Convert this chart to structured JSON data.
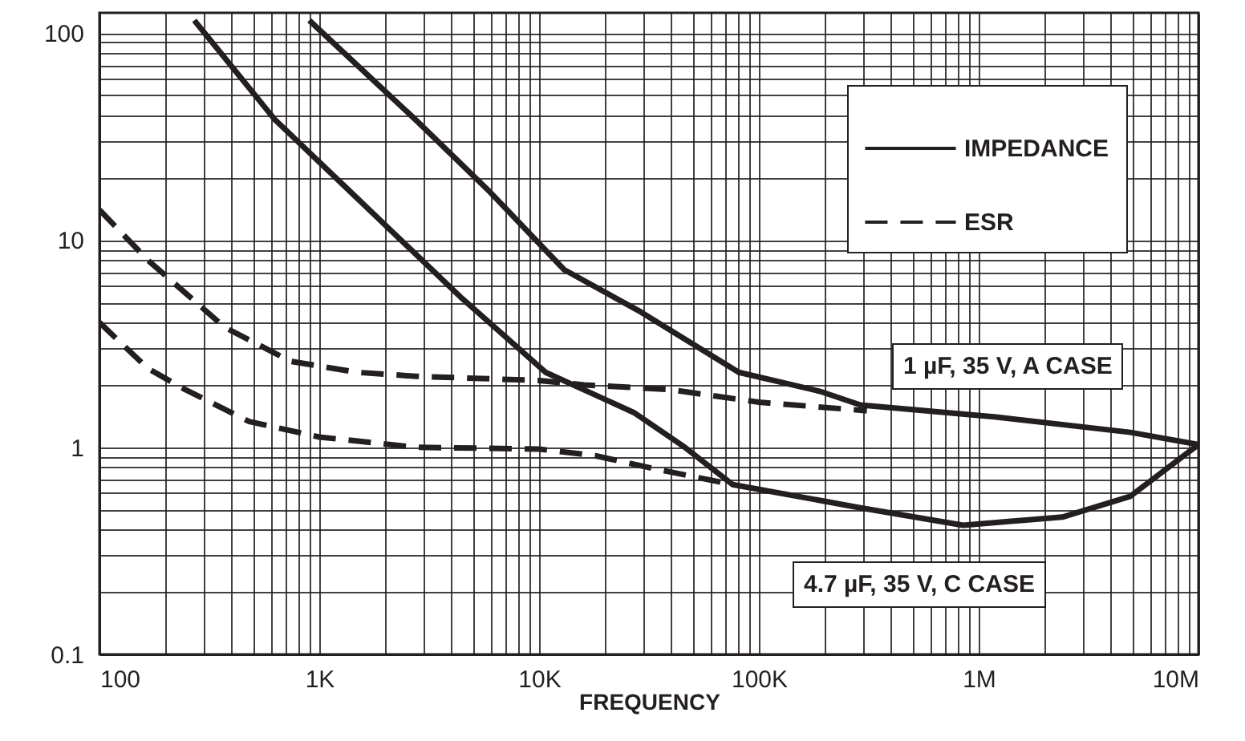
{
  "chart_data": {
    "type": "line",
    "xlabel": "FREQUENCY",
    "log": "xy",
    "grid": true,
    "legend": "top right",
    "marker": "none",
    "xlim": [
      100,
      10000000
    ],
    "ylim": [
      0.1,
      125
    ],
    "xticks": [
      {
        "value": 100,
        "label": "100"
      },
      {
        "value": 200,
        "label": null
      },
      {
        "value": 300,
        "label": null
      },
      {
        "value": 400,
        "label": null
      },
      {
        "value": 500,
        "label": null
      },
      {
        "value": 600,
        "label": null
      },
      {
        "value": 700,
        "label": null
      },
      {
        "value": 800,
        "label": null
      },
      {
        "value": 900,
        "label": null
      },
      {
        "value": 1000,
        "label": "1K"
      },
      {
        "value": 2000,
        "label": null
      },
      {
        "value": 3000,
        "label": null
      },
      {
        "value": 4000,
        "label": null
      },
      {
        "value": 5000,
        "label": null
      },
      {
        "value": 6000,
        "label": null
      },
      {
        "value": 7000,
        "label": null
      },
      {
        "value": 8000,
        "label": null
      },
      {
        "value": 9000,
        "label": null
      },
      {
        "value": 10000,
        "label": "10K"
      },
      {
        "value": 20000,
        "label": null
      },
      {
        "value": 30000,
        "label": null
      },
      {
        "value": 40000,
        "label": null
      },
      {
        "value": 50000,
        "label": null
      },
      {
        "value": 60000,
        "label": null
      },
      {
        "value": 70000,
        "label": null
      },
      {
        "value": 80000,
        "label": null
      },
      {
        "value": 90000,
        "label": null
      },
      {
        "value": 100000,
        "label": "100K"
      },
      {
        "value": 200000,
        "label": null
      },
      {
        "value": 300000,
        "label": null
      },
      {
        "value": 400000,
        "label": null
      },
      {
        "value": 500000,
        "label": null
      },
      {
        "value": 600000,
        "label": null
      },
      {
        "value": 700000,
        "label": null
      },
      {
        "value": 800000,
        "label": null
      },
      {
        "value": 900000,
        "label": null
      },
      {
        "value": 1000000,
        "label": "1M"
      },
      {
        "value": 2000000,
        "label": null
      },
      {
        "value": 3000000,
        "label": null
      },
      {
        "value": 4000000,
        "label": null
      },
      {
        "value": 5000000,
        "label": null
      },
      {
        "value": 6000000,
        "label": null
      },
      {
        "value": 7000000,
        "label": null
      },
      {
        "value": 8000000,
        "label": null
      },
      {
        "value": 9000000,
        "label": null
      },
      {
        "value": 10000000,
        "label": "10M"
      }
    ],
    "yticks": [
      0.1,
      {
        "value": 0.2,
        "label": null
      },
      {
        "value": 0.3,
        "label": null
      },
      {
        "value": 0.4,
        "label": null
      },
      {
        "value": 0.5,
        "label": null
      },
      {
        "value": 0.6,
        "label": null
      },
      {
        "value": 0.7,
        "label": null
      },
      {
        "value": 0.8,
        "label": null
      },
      {
        "value": 0.9,
        "label": null
      },
      1,
      {
        "value": 2,
        "label": null
      },
      {
        "value": 3,
        "label": null
      },
      {
        "value": 4,
        "label": null
      },
      {
        "value": 5,
        "label": null
      },
      {
        "value": 6,
        "label": null
      },
      {
        "value": 7,
        "label": null
      },
      {
        "value": 8,
        "label": null
      },
      {
        "value": 9,
        "label": null
      },
      10,
      {
        "value": 20,
        "label": null
      },
      {
        "value": 30,
        "label": null
      },
      {
        "value": 40,
        "label": null
      },
      {
        "value": 50,
        "label": null
      },
      {
        "value": 60,
        "label": null
      },
      {
        "value": 70,
        "label": null
      },
      {
        "value": 80,
        "label": null
      },
      {
        "value": 90,
        "label": null
      },
      100
    ],
    "series": [
      {
        "name": "IMPEDANCE",
        "color": "#231f20",
        "line_style": "solid",
        "x": [
          900,
          2750,
          6000,
          13000,
          29000,
          81000,
          190000,
          290000,
          1200000,
          4900000,
          10000000
        ],
        "values": [
          115,
          38,
          17,
          7.2,
          4.5,
          2.3,
          1.86,
          1.6,
          1.4,
          1.18,
          1.03
        ]
      },
      {
        "color": "#231f20",
        "line_style": "solid",
        "x": [
          270,
          630,
          1480,
          4400,
          10700,
          27000,
          46000,
          76000,
          290000,
          850000,
          2400000,
          4900000,
          10000000
        ],
        "values": [
          115,
          38,
          16,
          5.3,
          2.3,
          1.47,
          1.0,
          0.66,
          0.51,
          0.42,
          0.46,
          0.58,
          1.03
        ]
      },
      {
        "name": "ESR",
        "color": "#231f20",
        "line_style": "dashed",
        "x": [
          100,
          166,
          370,
          740,
          1480,
          2750,
          10000,
          16000,
          39000,
          100000,
          310000
        ],
        "values": [
          14,
          8,
          3.8,
          2.6,
          2.3,
          2.2,
          2.1,
          2.0,
          1.9,
          1.65,
          1.5
        ]
      },
      {
        "color": "#231f20",
        "line_style": "dashed",
        "x": [
          100,
          166,
          245,
          480,
          1000,
          2750,
          10000,
          18000,
          33000,
          76000
        ],
        "values": [
          4.0,
          2.4,
          1.9,
          1.33,
          1.12,
          1.0,
          0.98,
          0.91,
          0.79,
          0.66
        ]
      }
    ],
    "annotations": [
      "1 µF, 35 V, A CASE",
      "4.7 µF, 35 V, C CASE"
    ]
  }
}
